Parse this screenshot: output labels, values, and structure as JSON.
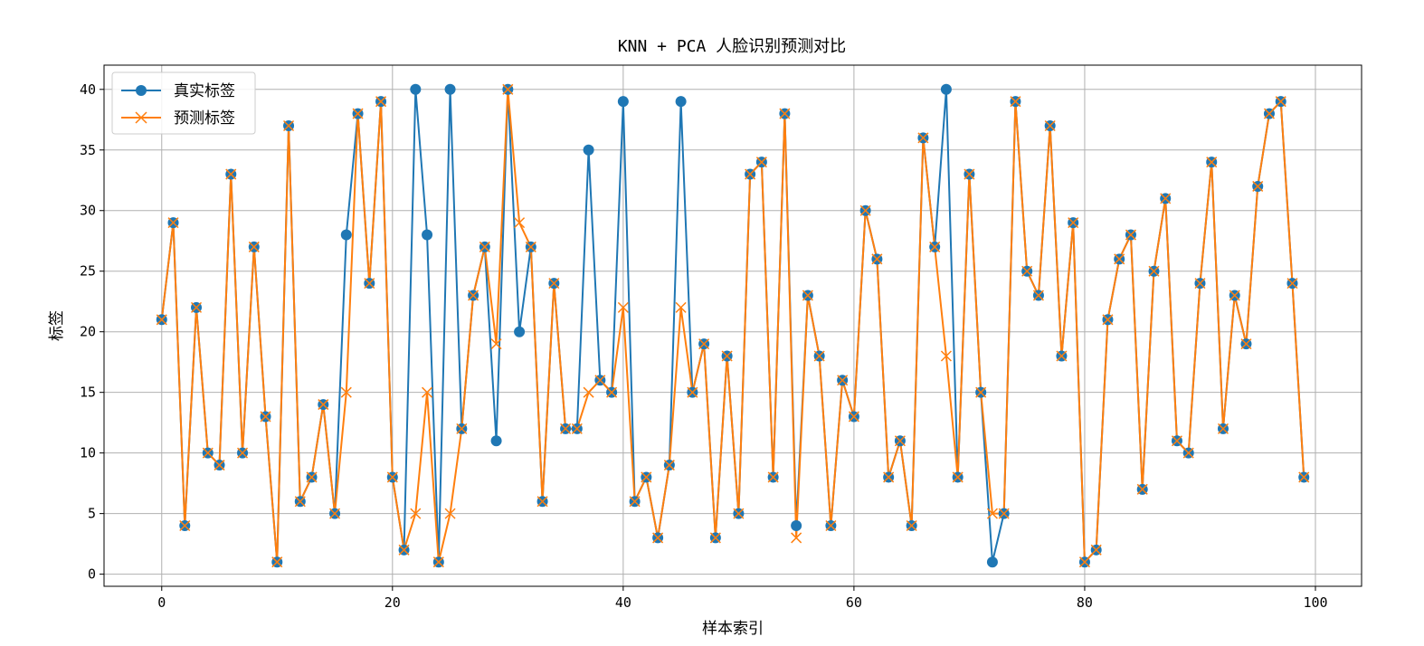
{
  "chart_data": {
    "type": "line",
    "title": "KNN + PCA 人脸识别预测对比",
    "xlabel": "样本索引",
    "ylabel": "标签",
    "xlim": [
      -5,
      104
    ],
    "ylim": [
      -1,
      42
    ],
    "xticks": [
      0,
      20,
      40,
      60,
      80,
      100
    ],
    "yticks": [
      0,
      5,
      10,
      15,
      20,
      25,
      30,
      35,
      40
    ],
    "grid": true,
    "legend_position": "top-left",
    "x": [
      0,
      1,
      2,
      3,
      4,
      5,
      6,
      7,
      8,
      9,
      10,
      11,
      12,
      13,
      14,
      15,
      16,
      17,
      18,
      19,
      20,
      21,
      22,
      23,
      24,
      25,
      26,
      27,
      28,
      29,
      30,
      31,
      32,
      33,
      34,
      35,
      36,
      37,
      38,
      39,
      40,
      41,
      42,
      43,
      44,
      45,
      46,
      47,
      48,
      49,
      50,
      51,
      52,
      53,
      54,
      55,
      56,
      57,
      58,
      59,
      60,
      61,
      62,
      63,
      64,
      65,
      66,
      67,
      68,
      69,
      70,
      71,
      72,
      73,
      74,
      75,
      76,
      77,
      78,
      79,
      80,
      81,
      82,
      83,
      84,
      85,
      86,
      87,
      88,
      89,
      90,
      91,
      92,
      93,
      94,
      95,
      96,
      97,
      98,
      99
    ],
    "series": [
      {
        "name": "真实标签",
        "color": "#1f77b4",
        "marker": "circle",
        "values": [
          21,
          29,
          4,
          22,
          10,
          9,
          33,
          10,
          27,
          13,
          1,
          37,
          6,
          8,
          14,
          5,
          28,
          38,
          24,
          39,
          8,
          2,
          40,
          28,
          1,
          40,
          12,
          23,
          27,
          11,
          40,
          20,
          27,
          6,
          24,
          12,
          12,
          35,
          16,
          15,
          39,
          6,
          8,
          3,
          9,
          39,
          15,
          19,
          3,
          18,
          5,
          33,
          34,
          8,
          38,
          4,
          23,
          18,
          4,
          16,
          13,
          30,
          26,
          8,
          11,
          4,
          36,
          27,
          40,
          8,
          33,
          15,
          1,
          5,
          39,
          25,
          23,
          37,
          18,
          29,
          1,
          2,
          21,
          26,
          28,
          7,
          25,
          31,
          11,
          10,
          24,
          34,
          12,
          23,
          19,
          32,
          38,
          39,
          24,
          8
        ]
      },
      {
        "name": "预测标签",
        "color": "#ff7f0e",
        "marker": "x",
        "values": [
          21,
          29,
          4,
          22,
          10,
          9,
          33,
          10,
          27,
          13,
          1,
          37,
          6,
          8,
          14,
          5,
          15,
          38,
          24,
          39,
          8,
          2,
          5,
          15,
          1,
          5,
          12,
          23,
          27,
          19,
          40,
          29,
          27,
          6,
          24,
          12,
          12,
          15,
          16,
          15,
          22,
          6,
          8,
          3,
          9,
          22,
          15,
          19,
          3,
          18,
          5,
          33,
          34,
          8,
          38,
          3,
          23,
          18,
          4,
          16,
          13,
          30,
          26,
          8,
          11,
          4,
          36,
          27,
          18,
          8,
          33,
          15,
          5,
          5,
          39,
          25,
          23,
          37,
          18,
          29,
          1,
          2,
          21,
          26,
          28,
          7,
          25,
          31,
          11,
          10,
          24,
          34,
          12,
          23,
          19,
          32,
          38,
          39,
          24,
          8
        ]
      }
    ]
  }
}
